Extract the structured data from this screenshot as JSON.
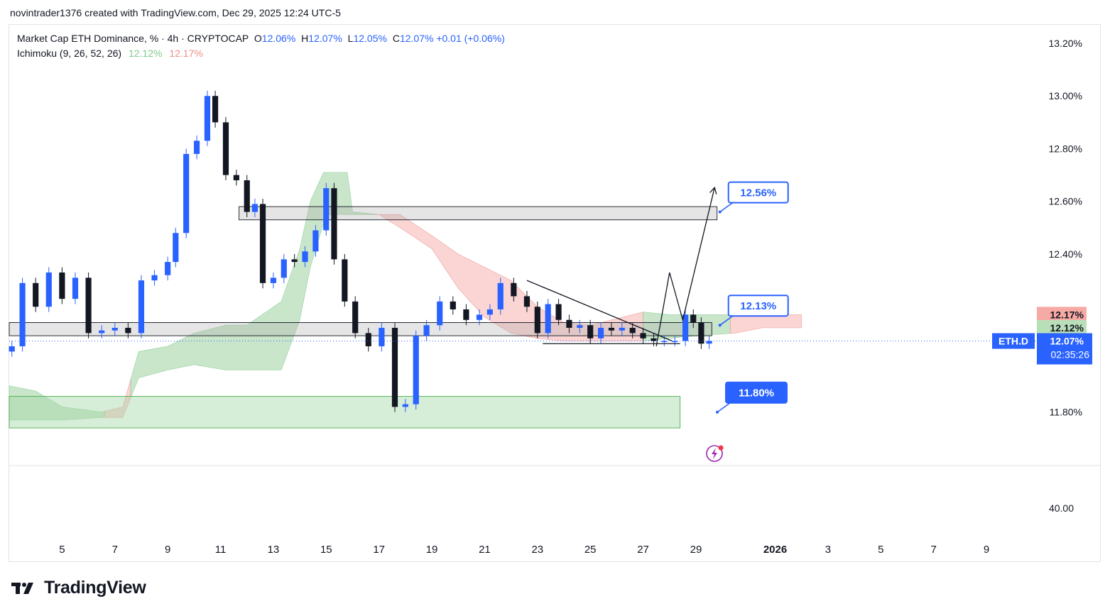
{
  "header": {
    "credit": "novintrader1376 created with TradingView.com, Dec 29, 2025 12:24 UTC-5"
  },
  "legend": {
    "symbol_line": "Market Cap ETH Dominance, % · 4h · CRYPTOCAP",
    "o_label": "O",
    "o_value": "12.06%",
    "h_label": "H",
    "h_value": "12.07%",
    "l_label": "L",
    "l_value": "12.05%",
    "c_label": "C",
    "c_value": "12.07%",
    "change": "+0.01 (+0.06%)",
    "indicator": "Ichimoku (9, 26, 52, 26)",
    "ind_value_1": "12.12%",
    "ind_value_2": "12.17%"
  },
  "footer": {
    "brand": "TradingView"
  },
  "colors": {
    "up": "#2962ff",
    "down": "#131722",
    "cloud_bull": "#a5d6a7",
    "cloud_bear": "#f7b9b5",
    "label_blue": "#2962ff",
    "tag_red": "#f7a9a4",
    "tag_green": "#b9dfb9"
  },
  "chart_data": {
    "type": "candlestick",
    "title": "Market Cap ETH Dominance, % · 4h · CRYPTOCAP",
    "y_unit": "%",
    "ylim": [
      11.6,
      13.27
    ],
    "y_ticks": [
      13.2,
      13.0,
      12.8,
      12.6,
      12.4,
      11.8
    ],
    "y_tick_labels": [
      "13.20%",
      "13.00%",
      "12.80%",
      "12.60%",
      "12.40%",
      "11.80%"
    ],
    "x_tick_labels": [
      "5",
      "7",
      "9",
      "11",
      "13",
      "15",
      "17",
      "19",
      "21",
      "23",
      "25",
      "27",
      "29",
      "2026",
      "3",
      "5",
      "7",
      "9"
    ],
    "x_tick_days": [
      5,
      7,
      9,
      11,
      13,
      15,
      17,
      19,
      21,
      23,
      25,
      27,
      29,
      32,
      34,
      36,
      38,
      40
    ],
    "x_day_range": [
      3.0,
      41.8
    ],
    "close_series": [
      [
        3.1,
        12.05
      ],
      [
        3.5,
        12.29
      ],
      [
        4.0,
        12.2
      ],
      [
        4.5,
        12.33
      ],
      [
        5.0,
        12.23
      ],
      [
        5.5,
        12.31
      ],
      [
        6.0,
        12.1
      ],
      [
        6.5,
        12.11
      ],
      [
        7.0,
        12.12
      ],
      [
        7.5,
        12.1
      ],
      [
        8.0,
        12.3
      ],
      [
        8.5,
        12.32
      ],
      [
        9.0,
        12.37
      ],
      [
        9.3,
        12.48
      ],
      [
        9.7,
        12.78
      ],
      [
        10.1,
        12.83
      ],
      [
        10.5,
        13.0
      ],
      [
        10.8,
        12.9
      ],
      [
        11.2,
        12.7
      ],
      [
        11.6,
        12.68
      ],
      [
        12.0,
        12.56
      ],
      [
        12.3,
        12.59
      ],
      [
        12.6,
        12.29
      ],
      [
        13.0,
        12.31
      ],
      [
        13.4,
        12.38
      ],
      [
        13.8,
        12.37
      ],
      [
        14.2,
        12.41
      ],
      [
        14.6,
        12.49
      ],
      [
        15.0,
        12.65
      ],
      [
        15.3,
        12.38
      ],
      [
        15.7,
        12.22
      ],
      [
        16.1,
        12.1
      ],
      [
        16.6,
        12.05
      ],
      [
        17.1,
        12.12
      ],
      [
        17.6,
        11.82
      ],
      [
        18.0,
        11.83
      ],
      [
        18.4,
        12.09
      ],
      [
        18.8,
        12.13
      ],
      [
        19.3,
        12.22
      ],
      [
        19.8,
        12.19
      ],
      [
        20.3,
        12.15
      ],
      [
        20.8,
        12.17
      ],
      [
        21.2,
        12.19
      ],
      [
        21.6,
        12.29
      ],
      [
        22.1,
        12.24
      ],
      [
        22.6,
        12.2
      ],
      [
        23.0,
        12.1
      ],
      [
        23.4,
        12.21
      ],
      [
        23.8,
        12.15
      ],
      [
        24.2,
        12.12
      ],
      [
        24.6,
        12.13
      ],
      [
        25.0,
        12.08
      ],
      [
        25.4,
        12.12
      ],
      [
        25.8,
        12.11
      ],
      [
        26.2,
        12.12
      ],
      [
        26.6,
        12.1
      ],
      [
        27.0,
        12.08
      ],
      [
        27.4,
        12.07
      ],
      [
        27.8,
        12.07
      ],
      [
        28.2,
        12.07
      ],
      [
        28.6,
        12.17
      ],
      [
        28.9,
        12.14
      ],
      [
        29.2,
        12.06
      ],
      [
        29.5,
        12.07
      ]
    ],
    "ichimoku_cloud_upper": [
      [
        3.0,
        11.9
      ],
      [
        4.0,
        11.88
      ],
      [
        5.0,
        11.82
      ],
      [
        6.5,
        11.8
      ],
      [
        7.3,
        11.82
      ],
      [
        7.9,
        12.03
      ],
      [
        9.0,
        12.05
      ],
      [
        10.0,
        12.1
      ],
      [
        10.8,
        12.12
      ],
      [
        11.2,
        12.13
      ],
      [
        12.0,
        12.13
      ],
      [
        13.3,
        12.22
      ],
      [
        14.0,
        12.42
      ],
      [
        14.4,
        12.6
      ],
      [
        14.9,
        12.71
      ],
      [
        15.8,
        12.71
      ],
      [
        16.0,
        12.56
      ],
      [
        17.0,
        12.55
      ],
      [
        17.8,
        12.55
      ],
      [
        19.0,
        12.47
      ],
      [
        20.0,
        12.4
      ],
      [
        21.0,
        12.35
      ],
      [
        22.0,
        12.3
      ],
      [
        23.0,
        12.2
      ],
      [
        24.0,
        12.14
      ],
      [
        25.0,
        12.13
      ],
      [
        27.0,
        12.18
      ],
      [
        28.0,
        12.17
      ],
      [
        29.0,
        12.17
      ],
      [
        31.0,
        12.17
      ],
      [
        32.8,
        12.17
      ],
      [
        33.0,
        12.17
      ]
    ],
    "ichimoku_cloud_lower": [
      [
        3.0,
        11.77
      ],
      [
        4.0,
        11.77
      ],
      [
        5.0,
        11.77
      ],
      [
        6.5,
        11.78
      ],
      [
        7.3,
        11.78
      ],
      [
        7.9,
        11.93
      ],
      [
        9.0,
        11.96
      ],
      [
        10.0,
        11.98
      ],
      [
        11.2,
        11.96
      ],
      [
        12.0,
        11.96
      ],
      [
        13.3,
        11.96
      ],
      [
        14.0,
        12.15
      ],
      [
        14.4,
        12.35
      ],
      [
        15.0,
        12.55
      ],
      [
        15.8,
        12.55
      ],
      [
        17.0,
        12.55
      ],
      [
        17.8,
        12.5
      ],
      [
        19.0,
        12.42
      ],
      [
        20.0,
        12.27
      ],
      [
        21.0,
        12.16
      ],
      [
        22.0,
        12.1
      ],
      [
        23.0,
        12.08
      ],
      [
        24.0,
        12.07
      ],
      [
        25.0,
        12.07
      ],
      [
        27.0,
        12.07
      ],
      [
        28.0,
        12.08
      ],
      [
        29.0,
        12.09
      ],
      [
        30.5,
        12.1
      ],
      [
        31.5,
        12.12
      ],
      [
        32.0,
        12.12
      ],
      [
        33.0,
        12.12
      ]
    ],
    "zones": [
      {
        "name": "resistance-zone",
        "x_days": [
          11.7,
          29.8
        ],
        "y": [
          12.53,
          12.58
        ]
      },
      {
        "name": "mid-zone",
        "x_days": [
          3.0,
          29.6
        ],
        "y": [
          12.09,
          12.14
        ]
      },
      {
        "name": "support-zone",
        "x_days": [
          3.0,
          28.4
        ],
        "y": [
          11.74,
          11.86
        ]
      }
    ],
    "trendlines": [
      {
        "name": "descending-trendline",
        "from": [
          22.6,
          12.3
        ],
        "to": [
          28.1,
          12.07
        ]
      },
      {
        "name": "base-line",
        "from": [
          23.2,
          12.06
        ],
        "to": [
          28.4,
          12.06
        ]
      }
    ],
    "projection_path": [
      [
        27.5,
        12.05
      ],
      [
        28.0,
        12.33
      ],
      [
        28.5,
        12.15
      ],
      [
        29.7,
        12.65
      ]
    ],
    "annotations": [
      {
        "text": "12.56%",
        "value": 12.56,
        "at_day": 29.8
      },
      {
        "text": "12.13%",
        "value": 12.13,
        "at_day": 29.8
      },
      {
        "text": "11.80%",
        "value": 11.8,
        "at_day": 29.7
      }
    ],
    "price_tags": [
      {
        "text": "12.17%",
        "value": 12.17,
        "kind": "cloud-upper"
      },
      {
        "text": "12.12%",
        "value": 12.12,
        "kind": "cloud-lower"
      },
      {
        "text": "12.07%",
        "value": 12.07,
        "kind": "last-price"
      }
    ],
    "symbol_tag": "ETH.D",
    "countdown": "02:35:26",
    "last_price": 12.07,
    "lower_pane": {
      "tick_label": "40.00"
    }
  }
}
